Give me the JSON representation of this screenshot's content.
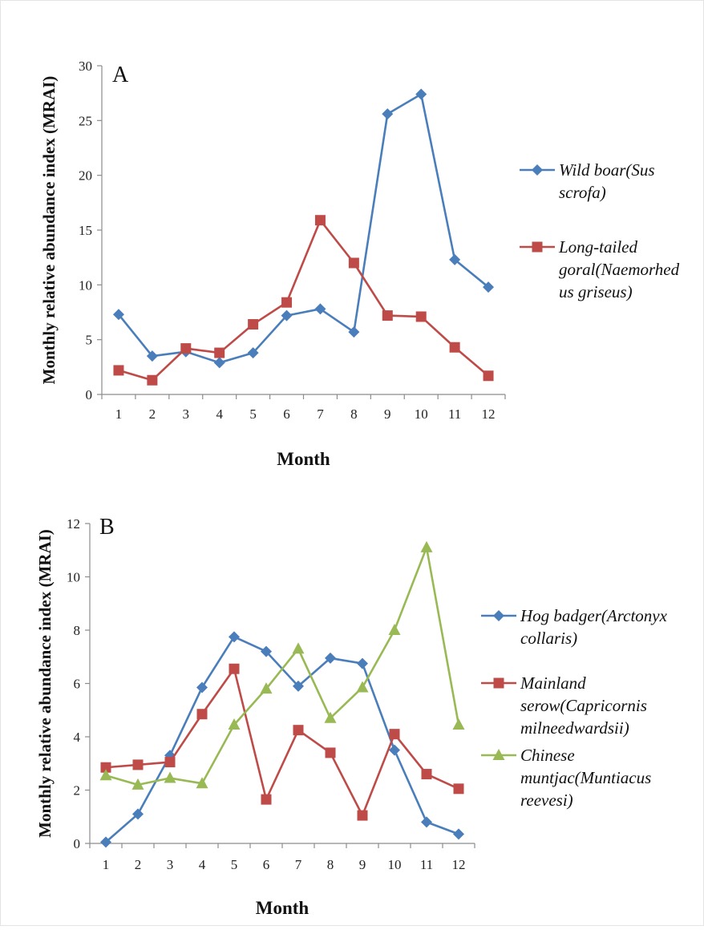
{
  "chart_data": [
    {
      "type": "line",
      "panel_label": "A",
      "xlabel": "Month",
      "ylabel": "Monthly  relative abundance index (MRAI)",
      "categories": [
        "1",
        "2",
        "3",
        "4",
        "5",
        "6",
        "7",
        "8",
        "9",
        "10",
        "11",
        "12"
      ],
      "ylim": [
        0,
        30
      ],
      "yticks": [
        "0",
        "5",
        "10",
        "15",
        "20",
        "25",
        "30"
      ],
      "grid": false,
      "legend_position": "right",
      "series": [
        {
          "name": "Wild boar(Sus scrofa)",
          "legend_lines": [
            "Wild boar(Sus",
            "scrofa)"
          ],
          "color": "#4a7ebb",
          "marker": "diamond",
          "values": [
            7.3,
            3.5,
            3.9,
            2.9,
            3.8,
            7.2,
            7.8,
            5.7,
            25.6,
            27.4,
            12.3,
            9.8
          ]
        },
        {
          "name": "Long-tailed goral(Naemorhedus griseus)",
          "legend_lines": [
            "Long-tailed",
            "goral(Naemorhed",
            "us griseus)"
          ],
          "color": "#be4b48",
          "marker": "square",
          "values": [
            2.2,
            1.3,
            4.2,
            3.8,
            6.4,
            8.4,
            15.9,
            12.0,
            7.2,
            7.1,
            4.3,
            1.7
          ]
        }
      ]
    },
    {
      "type": "line",
      "panel_label": "B",
      "xlabel": "Month",
      "ylabel": "Monthly  relative abundance index (MRAI)",
      "categories": [
        "1",
        "2",
        "3",
        "4",
        "5",
        "6",
        "7",
        "8",
        "9",
        "10",
        "11",
        "12"
      ],
      "ylim": [
        0,
        12
      ],
      "yticks": [
        "0",
        "2",
        "4",
        "6",
        "8",
        "10",
        "12"
      ],
      "grid": false,
      "legend_position": "right",
      "series": [
        {
          "name": "Hog badger(Arctonyx collaris)",
          "legend_lines": [
            "Hog badger(Arctonyx",
            "collaris)"
          ],
          "color": "#4a7ebb",
          "marker": "diamond",
          "values": [
            0.05,
            1.1,
            3.3,
            5.85,
            7.75,
            7.2,
            5.9,
            6.95,
            6.75,
            3.5,
            0.8,
            0.35
          ]
        },
        {
          "name": "Mainland serow(Capricornis milneedwardsii)",
          "legend_lines": [
            "Mainland",
            "serow(Capricornis",
            "milneedwardsii)"
          ],
          "color": "#be4b48",
          "marker": "square",
          "values": [
            2.85,
            2.95,
            3.05,
            4.85,
            6.55,
            1.65,
            4.25,
            3.4,
            1.05,
            4.1,
            2.6,
            2.05
          ]
        },
        {
          "name": "Chinese muntjac(Muntiacus reevesi)",
          "legend_lines": [
            "Chinese",
            "muntjac(Muntiacus",
            "reevesi)"
          ],
          "color": "#98b954",
          "marker": "triangle",
          "values": [
            2.55,
            2.2,
            2.45,
            2.25,
            4.45,
            5.8,
            7.3,
            4.7,
            5.85,
            8.0,
            11.1,
            4.45
          ]
        }
      ]
    }
  ]
}
